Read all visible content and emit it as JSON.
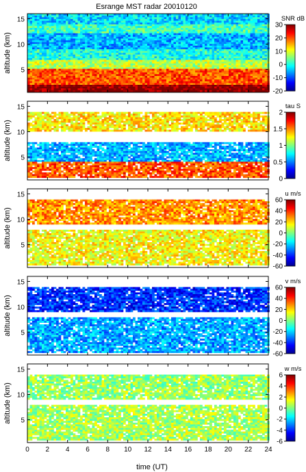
{
  "chart_data": [
    {
      "type": "heatmap",
      "title": "Esrange MST radar 20010120",
      "ylabel": "altitude (km)",
      "xlim": [
        0,
        24
      ],
      "ylim": [
        0.5,
        16
      ],
      "yticks": [
        5,
        10,
        15
      ],
      "colorbar": {
        "label": "SNR dB",
        "range": [
          -20,
          30
        ],
        "ticks": [
          -20,
          -10,
          0,
          10,
          20,
          30
        ]
      },
      "description_of_values": [
        {
          "altitude_km": [
            0.5,
            2
          ],
          "value": 30
        },
        {
          "altitude_km": [
            2,
            5
          ],
          "value": 20
        },
        {
          "altitude_km": [
            5,
            7
          ],
          "value": 8
        },
        {
          "altitude_km": [
            7,
            9
          ],
          "value": 0
        },
        {
          "altitude_km": [
            9,
            12
          ],
          "value": -5
        },
        {
          "altitude_km": [
            12,
            14
          ],
          "value": 2
        },
        {
          "altitude_km": [
            14,
            16
          ],
          "value": -3
        }
      ]
    },
    {
      "type": "heatmap",
      "ylabel": "altitude (km)",
      "xlim": [
        0,
        24
      ],
      "ylim": [
        0.5,
        16
      ],
      "yticks": [
        5,
        10,
        15
      ],
      "colorbar": {
        "label": "tau S",
        "range": [
          0,
          2
        ],
        "ticks": [
          0,
          0.5,
          1,
          1.5,
          2
        ]
      },
      "description_of_values": [
        {
          "altitude_km": [
            1,
            4
          ],
          "value": 1.6
        },
        {
          "altitude_km": [
            4,
            8
          ],
          "value": 0.6
        },
        {
          "altitude_km": [
            10,
            14
          ],
          "value": 1.3
        }
      ]
    },
    {
      "type": "heatmap",
      "ylabel": "altitude (km)",
      "xlim": [
        0,
        24
      ],
      "ylim": [
        0.5,
        16
      ],
      "yticks": [
        5,
        10,
        15
      ],
      "colorbar": {
        "label": "u m/s",
        "range": [
          -60,
          60
        ],
        "ticks": [
          -60,
          -40,
          -20,
          0,
          20,
          40,
          60
        ]
      },
      "description_of_values": [
        {
          "altitude_km": [
            1,
            8
          ],
          "value": 15
        },
        {
          "altitude_km": [
            9,
            14
          ],
          "value": 28
        }
      ]
    },
    {
      "type": "heatmap",
      "ylabel": "altitude (km)",
      "xlim": [
        0,
        24
      ],
      "ylim": [
        0.5,
        16
      ],
      "yticks": [
        5,
        10,
        15
      ],
      "colorbar": {
        "label": "v m/s",
        "range": [
          -60,
          60
        ],
        "ticks": [
          -60,
          -40,
          -20,
          0,
          20,
          40,
          60
        ]
      },
      "description_of_values": [
        {
          "altitude_km": [
            1,
            8
          ],
          "value": -25
        },
        {
          "altitude_km": [
            9,
            14
          ],
          "value": -40
        }
      ]
    },
    {
      "type": "heatmap",
      "xlabel": "time (UT)",
      "ylabel": "altitude (km)",
      "xlim": [
        0,
        24
      ],
      "ylim": [
        0.5,
        16
      ],
      "xticks": [
        0,
        2,
        4,
        6,
        8,
        10,
        12,
        14,
        16,
        18,
        20,
        22,
        24
      ],
      "yticks": [
        5,
        10,
        15
      ],
      "colorbar": {
        "label": "w m/s",
        "range": [
          -6,
          6
        ],
        "ticks": [
          -6,
          -4,
          -2,
          0,
          2,
          4,
          6
        ]
      },
      "description_of_values": [
        {
          "altitude_km": [
            1,
            8
          ],
          "value": 0.5
        },
        {
          "altitude_km": [
            9,
            14
          ],
          "value": 0.3
        }
      ]
    }
  ]
}
